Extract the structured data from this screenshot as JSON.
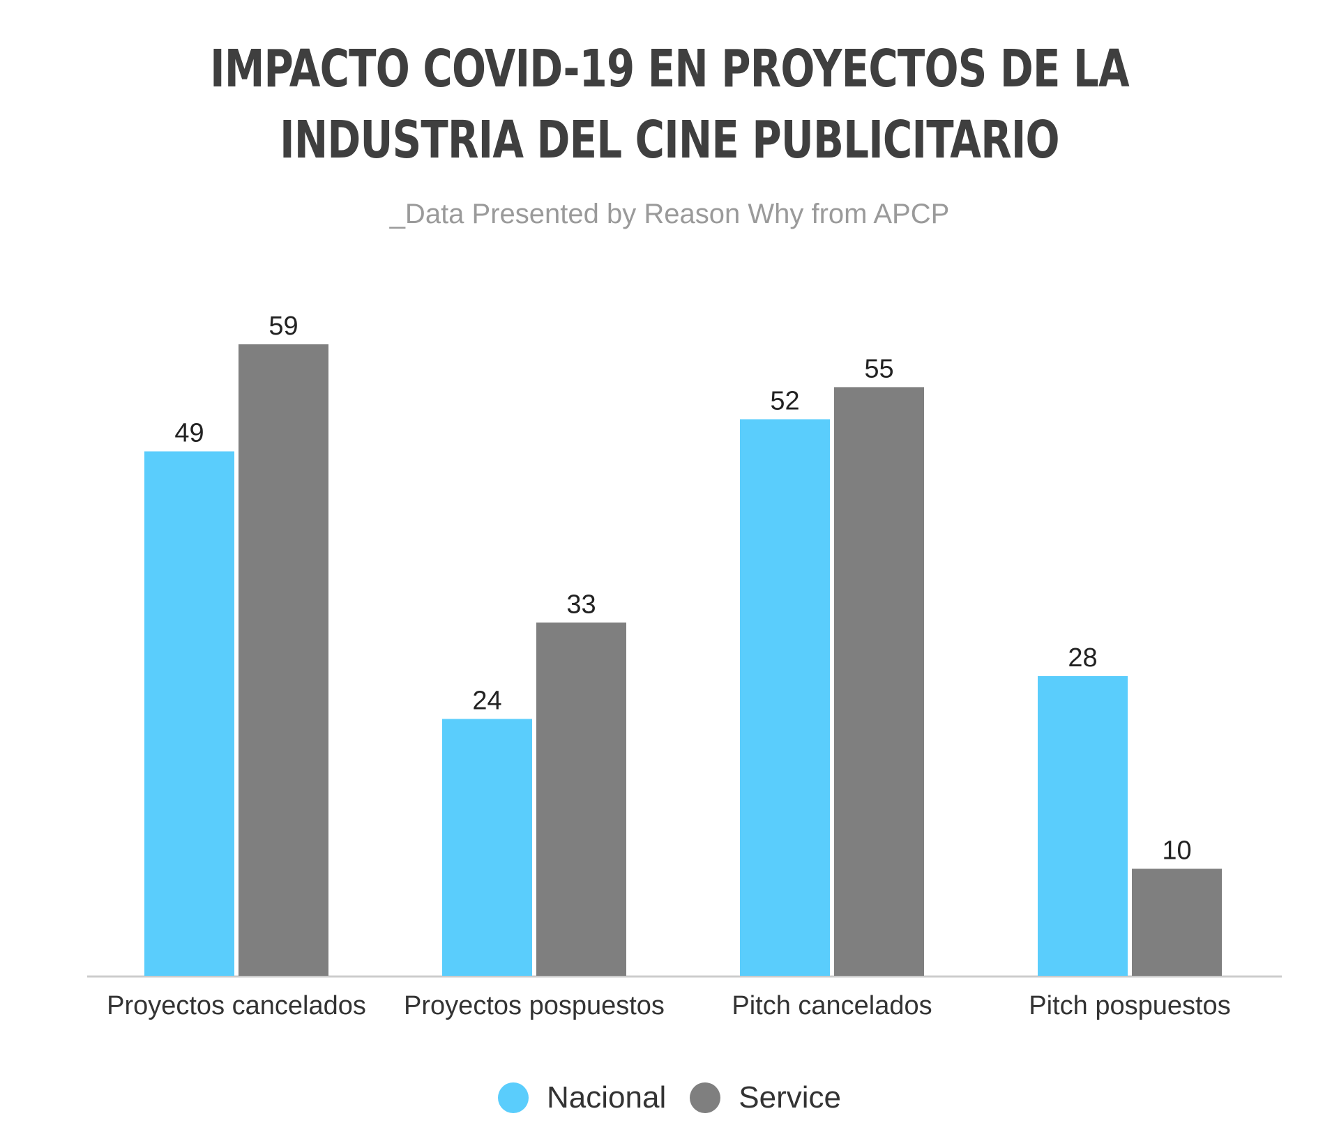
{
  "title": "IMPACTO COVID-19 EN PROYECTOS DE LA INDUSTRIA DEL CINE PUBLICITARIO",
  "subtitle": "_Data Presented by Reason Why from APCP",
  "colors": {
    "Nacional": "#5acdfc",
    "Service": "#7f7f7f",
    "axis": "#cccccc",
    "text": "#333333"
  },
  "chart_data": {
    "type": "bar",
    "title": "IMPACTO COVID-19 EN PROYECTOS DE LA INDUSTRIA DEL CINE PUBLICITARIO",
    "subtitle": "_Data Presented by Reason Why from APCP",
    "categories": [
      "Proyectos cancelados",
      "Proyectos pospuestos",
      "Pitch cancelados",
      "Pitch pospuestos"
    ],
    "series": [
      {
        "name": "Nacional",
        "values": [
          49,
          24,
          52,
          28
        ]
      },
      {
        "name": "Service",
        "values": [
          59,
          33,
          55,
          10
        ]
      }
    ],
    "ylim": [
      0,
      59
    ],
    "grid": false,
    "legend": "bottom",
    "data_labels": true
  }
}
